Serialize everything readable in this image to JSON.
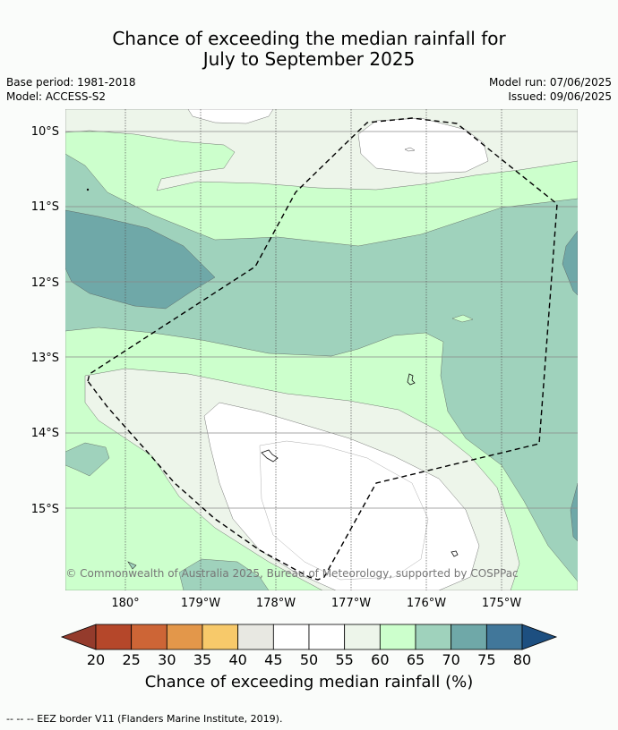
{
  "title": {
    "line1": "Chance of exceeding the median rainfall for",
    "line2": "July to September 2025"
  },
  "meta": {
    "base_period": "Base period: 1981-2018",
    "model": "Model: ACCESS-S2",
    "model_run": "Model run: 07/06/2025",
    "issued": "Issued: 09/06/2025"
  },
  "map": {
    "lat_labels": [
      "10°S",
      "11°S",
      "12°S",
      "13°S",
      "14°S",
      "15°S"
    ],
    "lon_labels": [
      "180°",
      "179°W",
      "178°W",
      "177°W",
      "176°W",
      "175°W"
    ],
    "copyright": "© Commonwealth of Australia 2025, Bureau of Meteorology, supported by COSPPac"
  },
  "colorbar": {
    "ticks": [
      "20",
      "25",
      "30",
      "35",
      "40",
      "45",
      "50",
      "55",
      "60",
      "65",
      "70",
      "75",
      "80"
    ],
    "colors": [
      "#b5472a",
      "#cd6536",
      "#e3974a",
      "#f7c96a",
      "#e8e8e2",
      "#ffffff",
      "#ffffff",
      "#edf5ea",
      "#ccffcc",
      "#9fd2bc",
      "#6fa8a8",
      "#41779a"
    ],
    "low_end_color": "#943b2c",
    "high_end_color": "#1d4f80",
    "label": "Chance of exceeding median rainfall (%)"
  },
  "legend": {
    "eez": "--  --  -- EEZ border V11 (Flanders Marine Institute, 2019)."
  }
}
